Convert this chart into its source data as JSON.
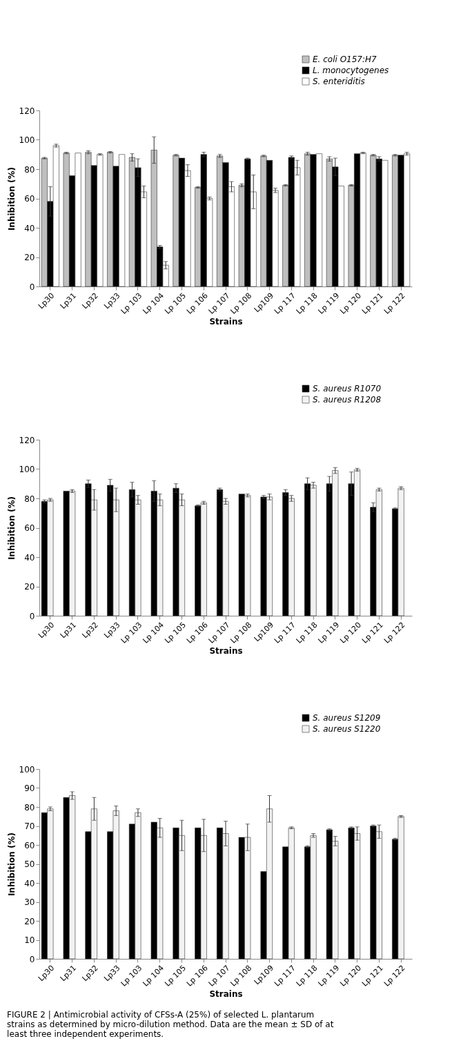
{
  "chart_data": [
    {
      "type": "bar",
      "xlabel": "Strains",
      "ylabel": "Inhibition (%)",
      "categories": [
        "Lp30",
        "Lp31",
        "Lp32",
        "Lp33",
        "Lp 103",
        "Lp 104",
        "Lp 105",
        "Lp 106",
        "Lp 107",
        "Lp 108",
        "Lp109",
        "Lp 117",
        "Lp 118",
        "Lp 119",
        "Lp 120",
        "Lp 121",
        "Lp 122"
      ],
      "ylim": [
        0,
        120
      ],
      "yticks": [
        0,
        20,
        40,
        60,
        80,
        100,
        120
      ],
      "grid": false,
      "legend": "top right",
      "series": [
        {
          "name": "E. coli O157:H7",
          "color": "#bfbfbf",
          "values": [
            87.5,
            91,
            91.5,
            91.5,
            88,
            93,
            89.5,
            67.5,
            89,
            69,
            89,
            69,
            90.5,
            87,
            69,
            89.5,
            89.5
          ],
          "errors": [
            0.5,
            0.5,
            1,
            0.5,
            2.5,
            9,
            0.5,
            0.5,
            1,
            1,
            0.5,
            0.5,
            1,
            1.5,
            0.5,
            0.5,
            0.5
          ]
        },
        {
          "name": "L. monocytogenes",
          "color": "#000000",
          "values": [
            58,
            75.5,
            82.5,
            82,
            81,
            27,
            87.5,
            90,
            84.5,
            87,
            86,
            88,
            90,
            81.5,
            90.5,
            87,
            89.5
          ],
          "errors": [
            10,
            null,
            null,
            null,
            6,
            1,
            null,
            1.5,
            null,
            0.5,
            null,
            1,
            null,
            6,
            null,
            1.5,
            null
          ]
        },
        {
          "name": "S. enteriditis",
          "color": "#ffffff",
          "values": [
            96,
            91,
            90,
            90,
            64.5,
            14.5,
            79,
            60,
            68,
            64.5,
            65.5,
            81,
            90.5,
            68.5,
            91,
            86,
            90.5
          ],
          "errors": [
            1,
            null,
            0.5,
            null,
            4,
            2.5,
            4,
            1,
            3.5,
            11.5,
            1.5,
            5,
            null,
            null,
            0.5,
            null,
            1
          ]
        }
      ]
    },
    {
      "type": "bar",
      "xlabel": "Strains",
      "ylabel": "Inhibition (%)",
      "categories": [
        "Lp30",
        "Lp31",
        "Lp32",
        "Lp33",
        "Lp 103",
        "Lp 104",
        "Lp 105",
        "Lp 106",
        "Lp 107",
        "Lp 108",
        "Lp109",
        "Lp 117",
        "Lp 118",
        "Lp 119",
        "Lp 120",
        "Lp 121",
        "Lp 122"
      ],
      "ylim": [
        0,
        120
      ],
      "yticks": [
        0,
        20,
        40,
        60,
        80,
        100,
        120
      ],
      "grid": false,
      "legend": "top right",
      "series": [
        {
          "name": "S. aureus R1070",
          "color": "#000000",
          "values": [
            78,
            85,
            90,
            89,
            86,
            85,
            87,
            75,
            86,
            83,
            81,
            84,
            90,
            90,
            90,
            74,
            73
          ],
          "errors": [
            1,
            null,
            2.5,
            4,
            5,
            7,
            3,
            0.5,
            1,
            null,
            1,
            2,
            4,
            5,
            8,
            3,
            0.5
          ]
        },
        {
          "name": "S. aureus R1208",
          "color": "#f2f2f2",
          "values": [
            79,
            85,
            79,
            79,
            79,
            79,
            79,
            77,
            78,
            82,
            81,
            80,
            89,
            99,
            99.5,
            86,
            87
          ],
          "errors": [
            1,
            1,
            7,
            8,
            3,
            4,
            4,
            1,
            2,
            1,
            2,
            2,
            2,
            2,
            1,
            1,
            1
          ]
        }
      ]
    },
    {
      "type": "bar",
      "xlabel": "Strains",
      "ylabel": "Inhibition (%)",
      "categories": [
        "Lp30",
        "Lp31",
        "Lp32",
        "Lp33",
        "Lp 103",
        "Lp 104",
        "Lp 105",
        "Lp 106",
        "Lp 107",
        "Lp 108",
        "Lp109",
        "Lp 117",
        "Lp 118",
        "Lp 119",
        "Lp 120",
        "Lp 121",
        "Lp 122"
      ],
      "ylim": [
        0,
        100
      ],
      "yticks": [
        0,
        10,
        20,
        30,
        40,
        50,
        60,
        70,
        80,
        90,
        100
      ],
      "grid": false,
      "legend": "top right",
      "series": [
        {
          "name": "S. aureus S1209",
          "color": "#000000",
          "values": [
            77,
            85,
            67,
            67,
            71,
            72,
            69,
            69,
            69,
            64,
            46,
            59,
            59,
            68,
            69,
            70,
            63
          ],
          "errors": [
            null,
            null,
            null,
            null,
            null,
            null,
            null,
            null,
            null,
            null,
            null,
            null,
            0.5,
            0.5,
            0.5,
            0.5,
            0.5
          ]
        },
        {
          "name": "S. aureus S1220",
          "color": "#f2f2f2",
          "values": [
            79,
            86,
            79,
            78,
            77,
            69,
            65,
            65,
            66,
            64,
            79,
            69,
            65,
            62,
            66,
            67,
            75
          ],
          "errors": [
            1,
            2,
            6,
            2.5,
            2,
            5,
            8,
            8.5,
            6.5,
            7,
            7,
            0.5,
            1,
            2.5,
            3.5,
            3.5,
            0.5
          ]
        }
      ],
      "annotations": [
        "FIGURE 2 | Antimicrobial activity of CFSs-A (25%) of selected L. plantarum strains as determined by micro-dilution method. Data are the mean ± SD of at least three independent experiments."
      ]
    }
  ]
}
